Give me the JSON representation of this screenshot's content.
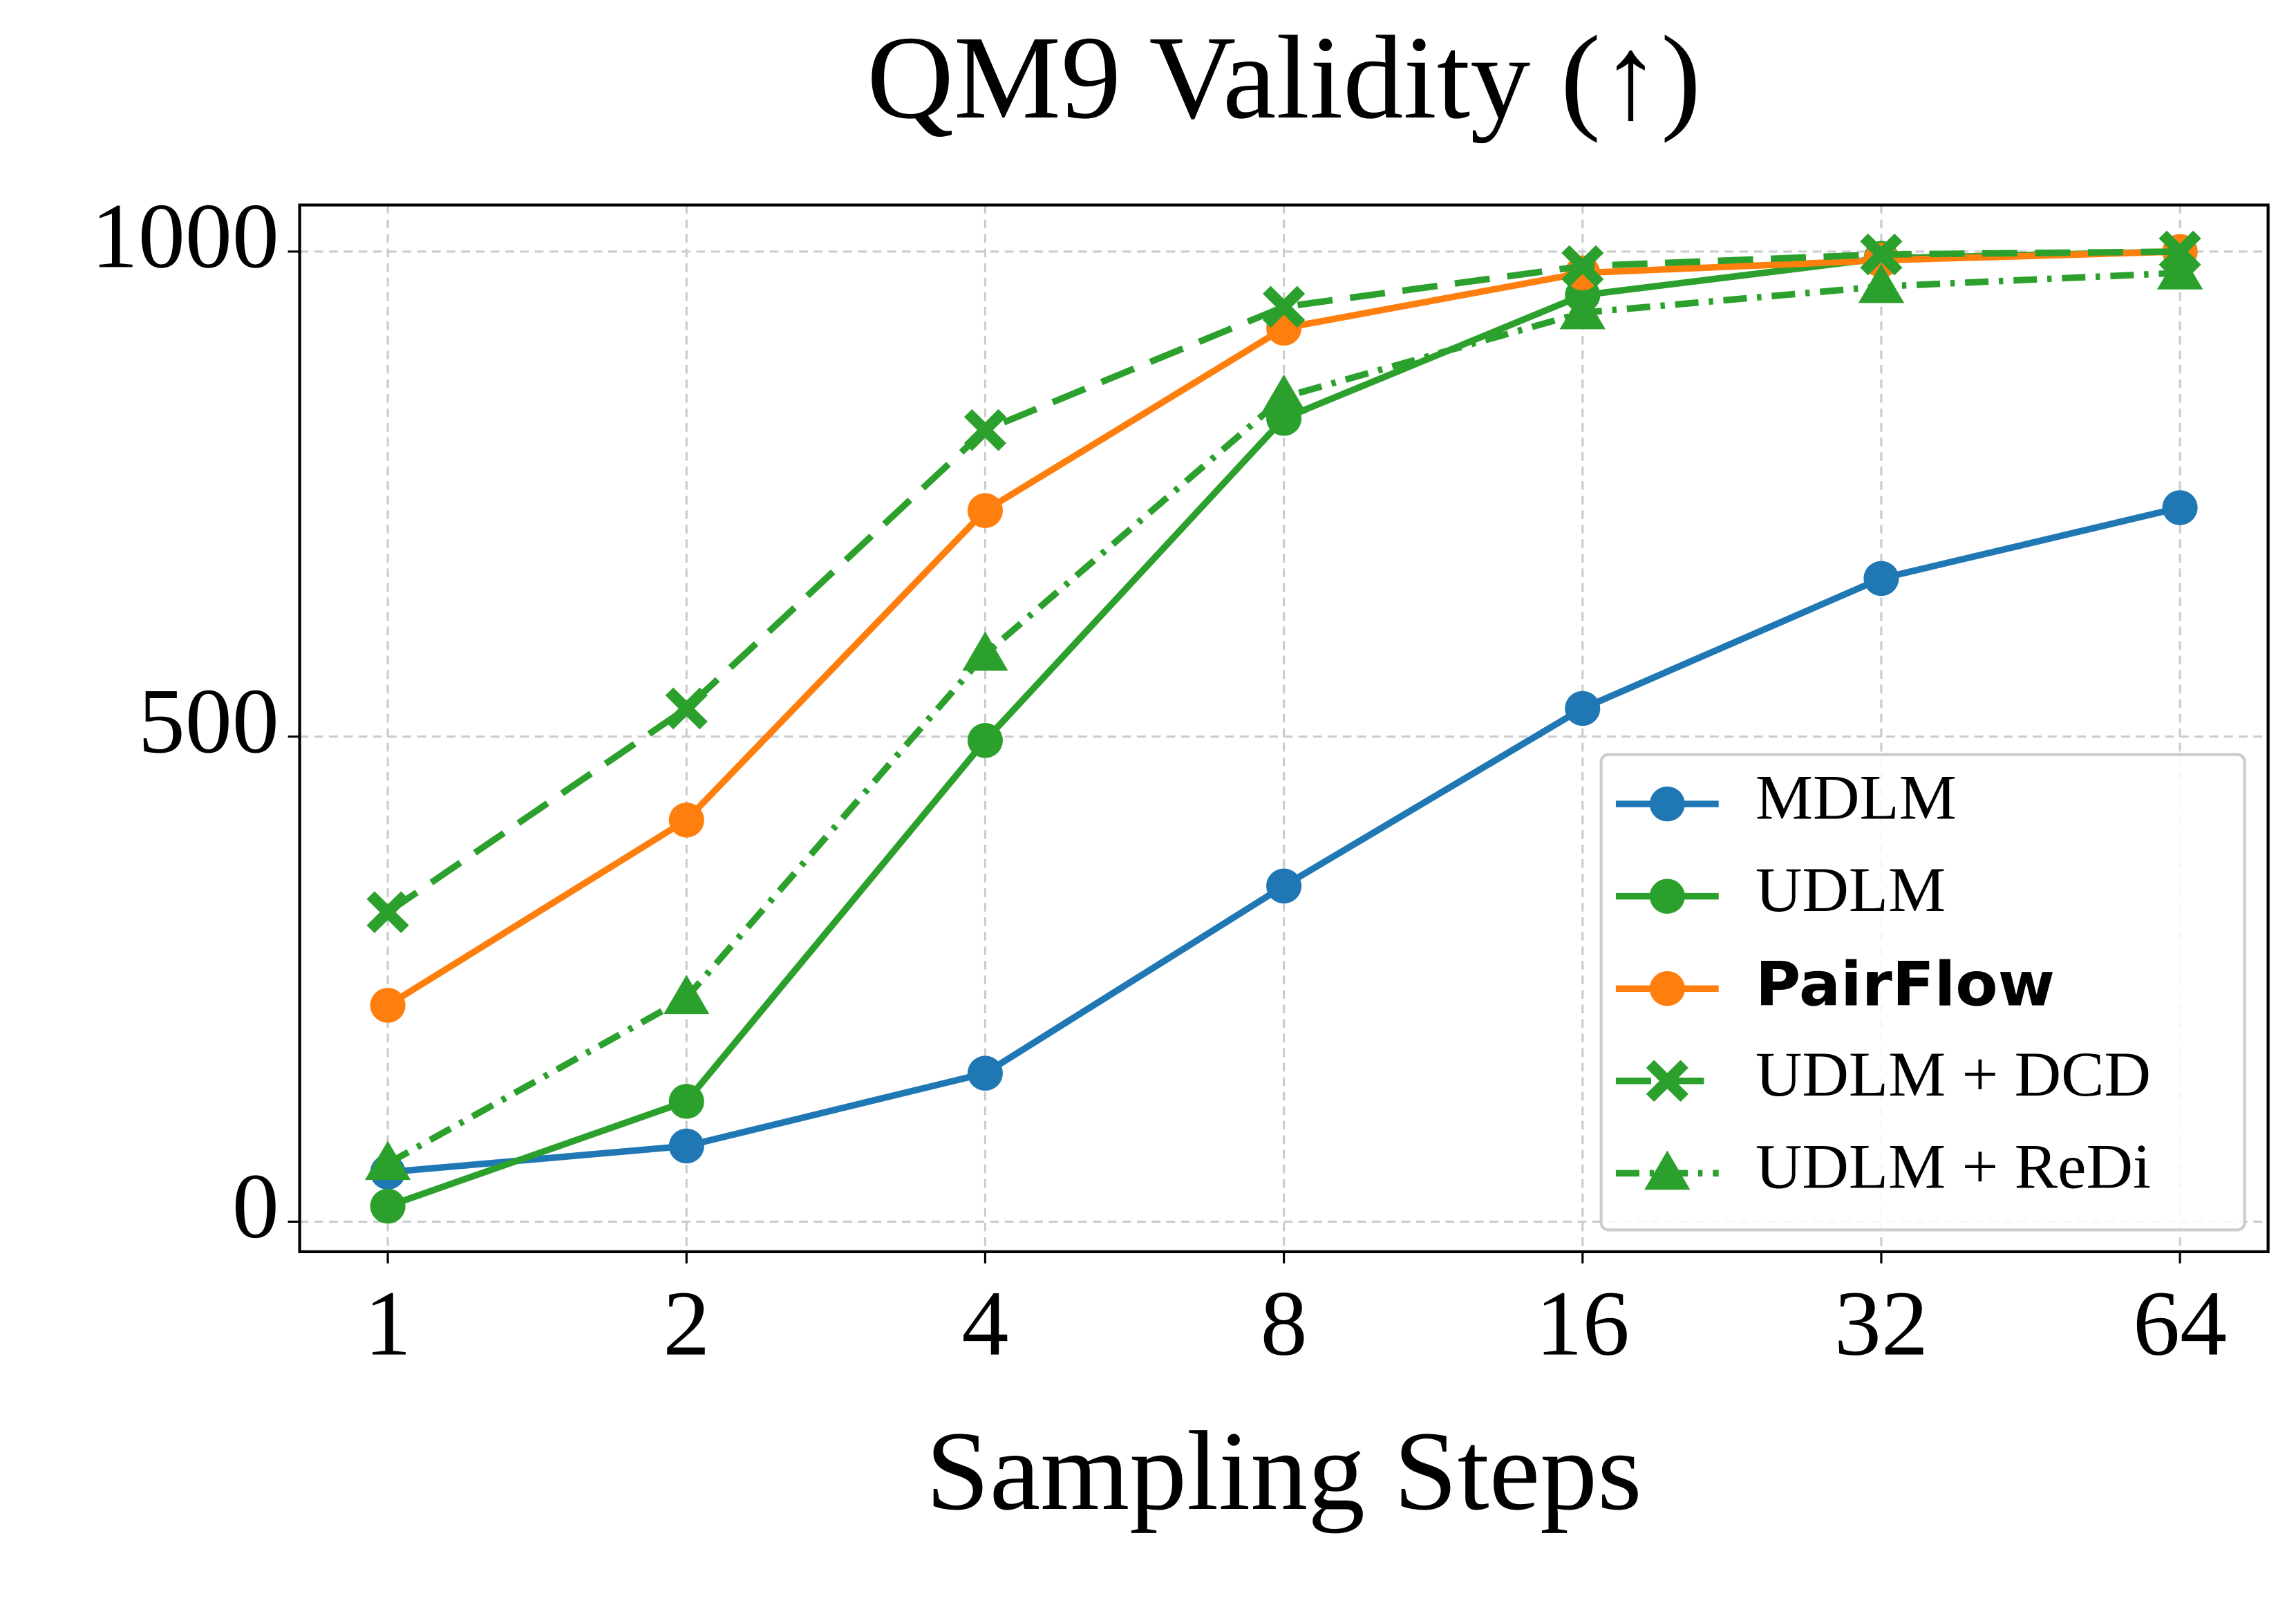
{
  "chart_data": {
    "type": "line",
    "title": "QM9 Validity (↑)",
    "x_label": "Sampling Steps",
    "categories": [
      "1",
      "2",
      "4",
      "8",
      "16",
      "32",
      "64"
    ],
    "ylim": [
      -31,
      1048
    ],
    "yticks": [
      0,
      500,
      1000
    ],
    "grid": true,
    "legend": "lower right",
    "series": [
      {
        "name": "MDLM",
        "color": "#1f77b4",
        "marker": "circle",
        "dash": "solid",
        "values": [
          51,
          78,
          153,
          346,
          529,
          663,
          736
        ]
      },
      {
        "name": "UDLM",
        "color": "#2ca02c",
        "marker": "circle",
        "dash": "solid",
        "values": [
          16,
          124,
          496,
          828,
          955,
          993,
          1000
        ]
      },
      {
        "name": "PairFlow",
        "color": "#ff7f0e",
        "marker": "circle",
        "dash": "solid",
        "bold": true,
        "values": [
          223,
          414,
          733,
          921,
          978,
          991,
          1000
        ]
      },
      {
        "name": "UDLM + DCD",
        "color": "#2ca02c",
        "marker": "x",
        "dash": "dashed",
        "values": [
          319,
          529,
          816,
          943,
          985,
          997,
          1000
        ]
      },
      {
        "name": "UDLM + ReDi",
        "color": "#2ca02c",
        "marker": "triangle",
        "dash": "dashdot",
        "values": [
          60,
          231,
          585,
          850,
          937,
          964,
          978
        ]
      }
    ]
  }
}
